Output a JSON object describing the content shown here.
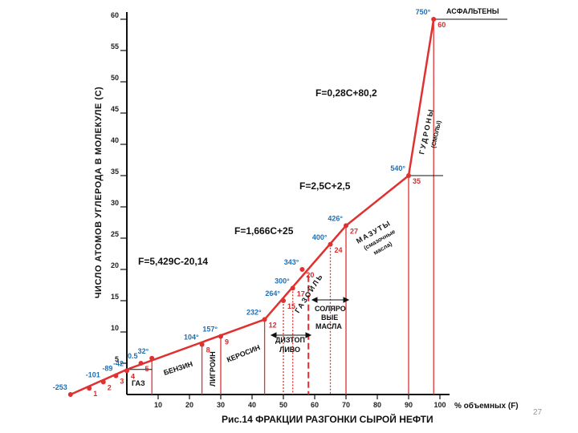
{
  "chart_data": {
    "type": "line",
    "title": "Рис.14 ФРАКЦИИ РАЗГОНКИ СЫРОЙ НЕФТИ",
    "ylabel": "ЧИСЛО АТОМОВ УГЛЕРОДА В МОЛЕКУЛЕ (С)",
    "xlabel": "% объемных (F)",
    "xlim": [
      -20,
      100
    ],
    "ylim": [
      0,
      62
    ],
    "x_ticks": [
      10,
      20,
      30,
      40,
      50,
      60,
      70,
      80,
      90,
      100
    ],
    "y_ticks": [
      5,
      10,
      15,
      20,
      25,
      30,
      35,
      40,
      45,
      50,
      55,
      60
    ],
    "grid": false,
    "line_color": "#e03030",
    "axis_color": "#111111",
    "series": [
      {
        "values": [
          {
            "x": -18,
            "y": 0
          },
          {
            "x": 0,
            "y": 4
          },
          {
            "x": 44,
            "y": 12
          },
          {
            "x": 70,
            "y": 27
          },
          {
            "x": 90,
            "y": 35
          },
          {
            "x": 98,
            "y": 60
          }
        ]
      }
    ],
    "points": [
      {
        "x": -18,
        "y": 0,
        "temp": "-253",
        "carbon": ""
      },
      {
        "x": -12,
        "y": 1,
        "temp": "",
        "carbon": "1"
      },
      {
        "x": -7.5,
        "y": 2,
        "temp": "-101",
        "carbon": "2"
      },
      {
        "x": -3.5,
        "y": 3,
        "temp": "-89",
        "carbon": "3"
      },
      {
        "x": 0,
        "y": 3.8,
        "temp": "-42",
        "carbon": "4"
      },
      {
        "x": 4.5,
        "y": 5,
        "temp": "0.5",
        "carbon": "5"
      },
      {
        "x": 8,
        "y": 5.8,
        "temp": "32°",
        "carbon": ""
      },
      {
        "x": 24,
        "y": 8,
        "temp": "104°",
        "carbon": "8"
      },
      {
        "x": 30,
        "y": 9.3,
        "temp": "157°",
        "carbon": "9"
      },
      {
        "x": 44,
        "y": 12,
        "temp": "232°",
        "carbon": "12"
      },
      {
        "x": 50,
        "y": 15,
        "temp": "264°",
        "carbon": "15"
      },
      {
        "x": 53,
        "y": 17,
        "temp": "300°",
        "carbon": "17"
      },
      {
        "x": 56,
        "y": 20,
        "temp": "343°",
        "carbon": "20"
      },
      {
        "x": 65,
        "y": 24,
        "temp": "400°",
        "carbon": "24"
      },
      {
        "x": 70,
        "y": 27,
        "temp": "426°",
        "carbon": "27"
      },
      {
        "x": 90,
        "y": 35,
        "temp": "540°",
        "carbon": "35"
      },
      {
        "x": 98,
        "y": 60,
        "temp": "750°",
        "carbon": "60"
      }
    ],
    "formulas": [
      "F=5,429C-20,14",
      "F=1,666C+25",
      "F=2,5C+2,5",
      "F=0,28C+80,2"
    ],
    "fractions": {
      "gas": "ГАЗ",
      "petrol": "БЕНЗИН",
      "ligroin": "ЛИГРОИН",
      "kerosene": "КЕРОСИН",
      "gasoils": "ГАЗОЙЛЬ",
      "diesel_line1": "ДИЗТОП",
      "diesel_line2": "ЛИВО",
      "solar_line1": "СОЛЯРО",
      "solar_line2": "ВЫЕ",
      "solar_line3": "МАСЛА",
      "fuel_oil": "МАЗУТЫ",
      "fuel_oil_sub1": "(смазочные",
      "fuel_oil_sub2": "масла)",
      "tars": "ГУДРОНЫ",
      "tars_sub": "(СМОЛЫ)",
      "asphalt": "АСФАЛЬТЕНЫ"
    }
  },
  "page_number": "27"
}
